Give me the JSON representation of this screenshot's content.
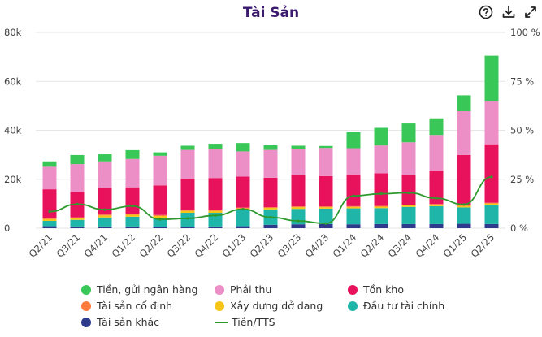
{
  "header": {
    "title": "Tài Sản",
    "icons": [
      "help-icon",
      "download-icon",
      "expand-icon"
    ]
  },
  "chart_data": {
    "type": "bar",
    "stacked": true,
    "categories": [
      "Q2/21",
      "Q3/21",
      "Q4/21",
      "Q1/22",
      "Q2/22",
      "Q3/22",
      "Q4/22",
      "Q1/23",
      "Q2/23",
      "Q3/23",
      "Q4/23",
      "Q1/24",
      "Q2/24",
      "Q3/24",
      "Q4/24",
      "Q1/25",
      "Q2/25"
    ],
    "y_ticks": [
      "0",
      "20k",
      "40k",
      "60k",
      "80k"
    ],
    "y_right_ticks": [
      "0 %",
      "25 %",
      "50 %",
      "75 %",
      "100 %"
    ],
    "ylim": [
      0,
      80000
    ],
    "ylim_right": [
      0,
      100
    ],
    "grid": true,
    "legend_position": "bottom",
    "series": [
      {
        "name": "Tài sản khác",
        "color": "#2e3a8c",
        "values": [
          800,
          700,
          700,
          700,
          600,
          500,
          700,
          800,
          1400,
          1600,
          1700,
          1600,
          1700,
          1700,
          1700,
          1800,
          1700
        ]
      },
      {
        "name": "Đầu tư tài chính",
        "color": "#1fb5a8",
        "values": [
          2200,
          2700,
          3700,
          4000,
          3400,
          5800,
          5600,
          6700,
          6300,
          6300,
          6300,
          6500,
          6500,
          7000,
          7300,
          6700,
          7800
        ]
      },
      {
        "name": "Xây dựng dở dang",
        "color": "#f5c518",
        "values": [
          700,
          600,
          800,
          800,
          1000,
          800,
          800,
          600,
          600,
          700,
          600,
          600,
          600,
          600,
          600,
          600,
          600
        ]
      },
      {
        "name": "Tài sản cố định",
        "color": "#ff7a3d",
        "values": [
          500,
          400,
          400,
          400,
          400,
          400,
          300,
          300,
          300,
          300,
          300,
          300,
          300,
          300,
          300,
          300,
          300
        ]
      },
      {
        "name": "Tồn kho",
        "color": "#e8125c",
        "values": [
          11700,
          10400,
          10900,
          10800,
          12100,
          12700,
          13100,
          12700,
          12000,
          12900,
          12400,
          12700,
          13300,
          12200,
          13600,
          20500,
          23900
        ]
      },
      {
        "name": "Phải thu",
        "color": "#ec8fc6",
        "values": [
          9200,
          11400,
          10800,
          11600,
          12100,
          11800,
          11800,
          10300,
          11400,
          10700,
          11500,
          11000,
          11400,
          13300,
          14600,
          17900,
          17800
        ]
      },
      {
        "name": "Tiền, gửi ngân hàng",
        "color": "#39c858",
        "values": [
          2200,
          3700,
          2900,
          3600,
          1400,
          1700,
          2200,
          3400,
          1900,
          1200,
          800,
          6500,
          7200,
          7700,
          6800,
          6500,
          18400
        ]
      }
    ],
    "line": {
      "name": "Tiền/TTS",
      "color": "#2e9a2e",
      "axis": "right",
      "values": [
        8.5,
        12.3,
        9.5,
        11.3,
        4.5,
        5.0,
        6.5,
        9.7,
        5.6,
        3.7,
        2.4,
        16.5,
        17.6,
        18.1,
        15.3,
        12.1,
        26.2
      ]
    }
  },
  "legend": {
    "items": [
      {
        "label": "Tiền, gửi ngân hàng",
        "color": "#39c858",
        "kind": "dot"
      },
      {
        "label": "Phải thu",
        "color": "#ec8fc6",
        "kind": "dot"
      },
      {
        "label": "Tồn kho",
        "color": "#e8125c",
        "kind": "dot"
      },
      {
        "label": "Tài sản cố định",
        "color": "#ff7a3d",
        "kind": "dot"
      },
      {
        "label": "Xây dựng dở dang",
        "color": "#f5c518",
        "kind": "dot"
      },
      {
        "label": "Đầu tư tài chính",
        "color": "#1fb5a8",
        "kind": "dot"
      },
      {
        "label": "Tài sản khác",
        "color": "#2e3a8c",
        "kind": "dot"
      },
      {
        "label": "Tiền/TTS",
        "color": "#2e9a2e",
        "kind": "line"
      }
    ]
  }
}
